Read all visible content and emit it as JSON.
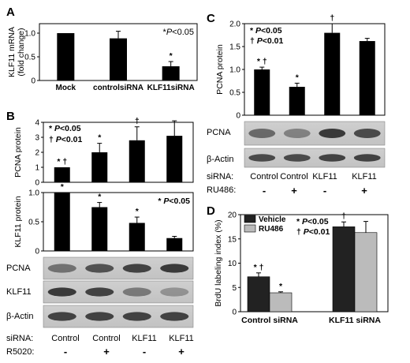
{
  "panels": {
    "A": {
      "letter": "A",
      "note": "*P<0.05"
    },
    "B": {
      "letter": "B"
    },
    "C": {
      "letter": "C"
    },
    "D": {
      "letter": "D"
    }
  },
  "chart_data": [
    {
      "panel": "A",
      "type": "bar",
      "ylabel": "KLF11 mRNA (fold change)",
      "categories": [
        "Mock",
        "controlsiRNA",
        "KLF11siRNA"
      ],
      "values": [
        1.0,
        0.89,
        0.3
      ],
      "errors": [
        0,
        0.15,
        0.1
      ],
      "marks": [
        "",
        "",
        "*"
      ],
      "ylim": [
        0,
        1.2
      ],
      "yticks": [
        "0",
        "0.5",
        "1.0"
      ],
      "annotation": "*P<0.05"
    },
    {
      "panel": "B-top",
      "type": "bar",
      "ylabel": "PCNA protein",
      "categories": [
        "Control -",
        "Control +",
        "KLF11 -",
        "KLF11 +"
      ],
      "values": [
        1.0,
        2.0,
        2.8,
        3.1
      ],
      "errors": [
        0,
        0.6,
        0.9,
        1.0
      ],
      "marks": [
        "* †",
        "*",
        "†",
        ""
      ],
      "ylim": [
        0,
        4
      ],
      "yticks": [
        "0",
        "1",
        "2",
        "3",
        "4"
      ],
      "legend": [
        "* P<0.05",
        "† P<0.01"
      ]
    },
    {
      "panel": "B-bottom",
      "type": "bar",
      "ylabel": "KLF11 protein",
      "categories": [
        "Control -",
        "Control +",
        "KLF11 -",
        "KLF11 +"
      ],
      "values": [
        1.0,
        0.75,
        0.48,
        0.22
      ],
      "errors": [
        0,
        0.08,
        0.1,
        0.03
      ],
      "marks": [
        "*",
        "*",
        "*",
        ""
      ],
      "ylim": [
        0,
        1.0
      ],
      "yticks": [
        "0",
        "0.5",
        "1.0"
      ],
      "annotation": "* P<0.05"
    },
    {
      "panel": "C",
      "type": "bar",
      "ylabel": "PCNA protein",
      "categories": [
        "Control -",
        "Control +",
        "KLF11 -",
        "KLF11 +"
      ],
      "values": [
        1.0,
        0.62,
        1.8,
        1.62
      ],
      "errors": [
        0.05,
        0.08,
        0.2,
        0.06
      ],
      "marks": [
        "* †",
        "*",
        "†",
        ""
      ],
      "ylim": [
        0,
        2.0
      ],
      "yticks": [
        "0",
        "0.5",
        "1.0",
        "1.5",
        "2.0"
      ],
      "legend": [
        "* P<0.05",
        "† P<0.01"
      ]
    },
    {
      "panel": "D",
      "type": "bar",
      "ylabel": "BrdU labeling index (%)",
      "categories": [
        "Control siRNA",
        "KLF11 siRNA"
      ],
      "series": [
        {
          "name": "Vehicle",
          "values": [
            7.2,
            17.5
          ],
          "errors": [
            0.8,
            1.0
          ],
          "marks": [
            "* †",
            "†"
          ],
          "color": "#222222"
        },
        {
          "name": "RU486",
          "values": [
            3.9,
            16.3
          ],
          "errors": [
            0.2,
            2.3
          ],
          "marks": [
            "*",
            ""
          ],
          "color": "#bbbbbb"
        }
      ],
      "ylim": [
        0,
        20
      ],
      "yticks": [
        "0",
        "5",
        "10",
        "15",
        "20"
      ],
      "legend": [
        "* P<0.05",
        "† P<0.01"
      ]
    }
  ],
  "blots": {
    "B": {
      "rows": [
        "PCNA",
        "KLF11",
        "β-Actin"
      ],
      "sirna_label": "siRNA:",
      "treat_label": "R5020:",
      "sirna": [
        "Control",
        "Control",
        "KLF11",
        "KLF11"
      ],
      "treat": [
        "-",
        "+",
        "-",
        "+"
      ]
    },
    "C": {
      "rows": [
        "PCNA",
        "β-Actin"
      ],
      "sirna_label": "siRNA:",
      "treat_label": "RU486:",
      "sirna": [
        "Control",
        "Control",
        "KLF11",
        "KLF11"
      ],
      "treat": [
        "-",
        "+",
        "-",
        "+"
      ]
    }
  }
}
